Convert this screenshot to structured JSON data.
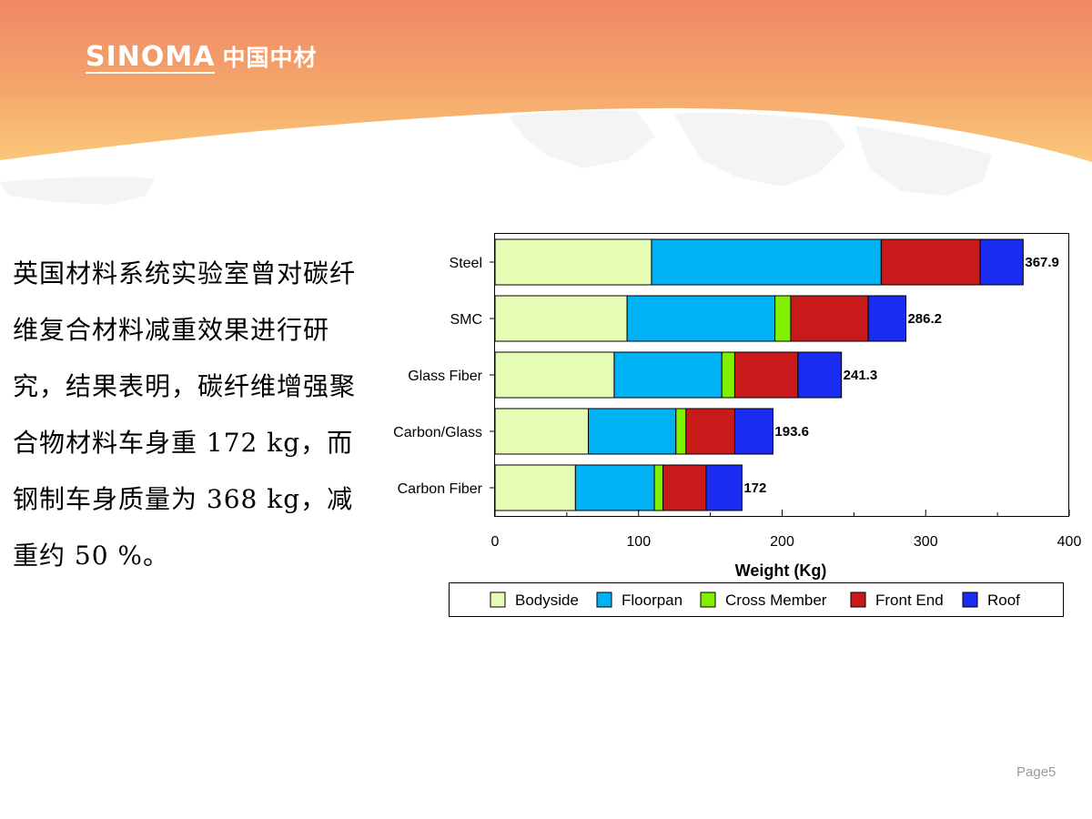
{
  "header": {
    "logo_en": "SINOMA",
    "logo_cn": "中国中材"
  },
  "body_text": "英国材料系统实验室曾对碳纤维复合材料减重效果进行研究，结果表明，碳纤维增强聚合物材料车身重 172 kg，而钢制车身质量为 368 kg，减重约 50 %。",
  "footer": {
    "page_label": "Page5"
  },
  "chart_data": {
    "type": "bar",
    "orientation": "horizontal",
    "stacked": true,
    "categories": [
      "Steel",
      "SMC",
      "Glass Fiber",
      "Carbon/Glass",
      "Carbon Fiber"
    ],
    "series": [
      {
        "name": "Bodyside",
        "color": "#e6fcb4",
        "values": [
          109,
          92,
          83,
          65,
          56
        ]
      },
      {
        "name": "Floorpan",
        "color": "#00b2f4",
        "values": [
          160,
          103,
          75,
          61,
          55
        ]
      },
      {
        "name": "Cross Member",
        "color": "#80f000",
        "values": [
          0,
          11,
          9,
          7,
          6
        ]
      },
      {
        "name": "Front End",
        "color": "#c81a1a",
        "values": [
          69,
          54,
          44,
          34,
          30
        ]
      },
      {
        "name": "Roof",
        "color": "#1a2cf0",
        "values": [
          29.9,
          26.2,
          30.3,
          26.6,
          25
        ]
      }
    ],
    "totals": [
      "367.9",
      "286.2",
      "241.3",
      "193.6",
      "172"
    ],
    "xlabel": "Weight (Kg)",
    "ylabel": "",
    "xlim": [
      0,
      400
    ],
    "xticks": [
      "0",
      "100",
      "200",
      "300",
      "400"
    ],
    "grid": false,
    "legend_position": "bottom"
  }
}
